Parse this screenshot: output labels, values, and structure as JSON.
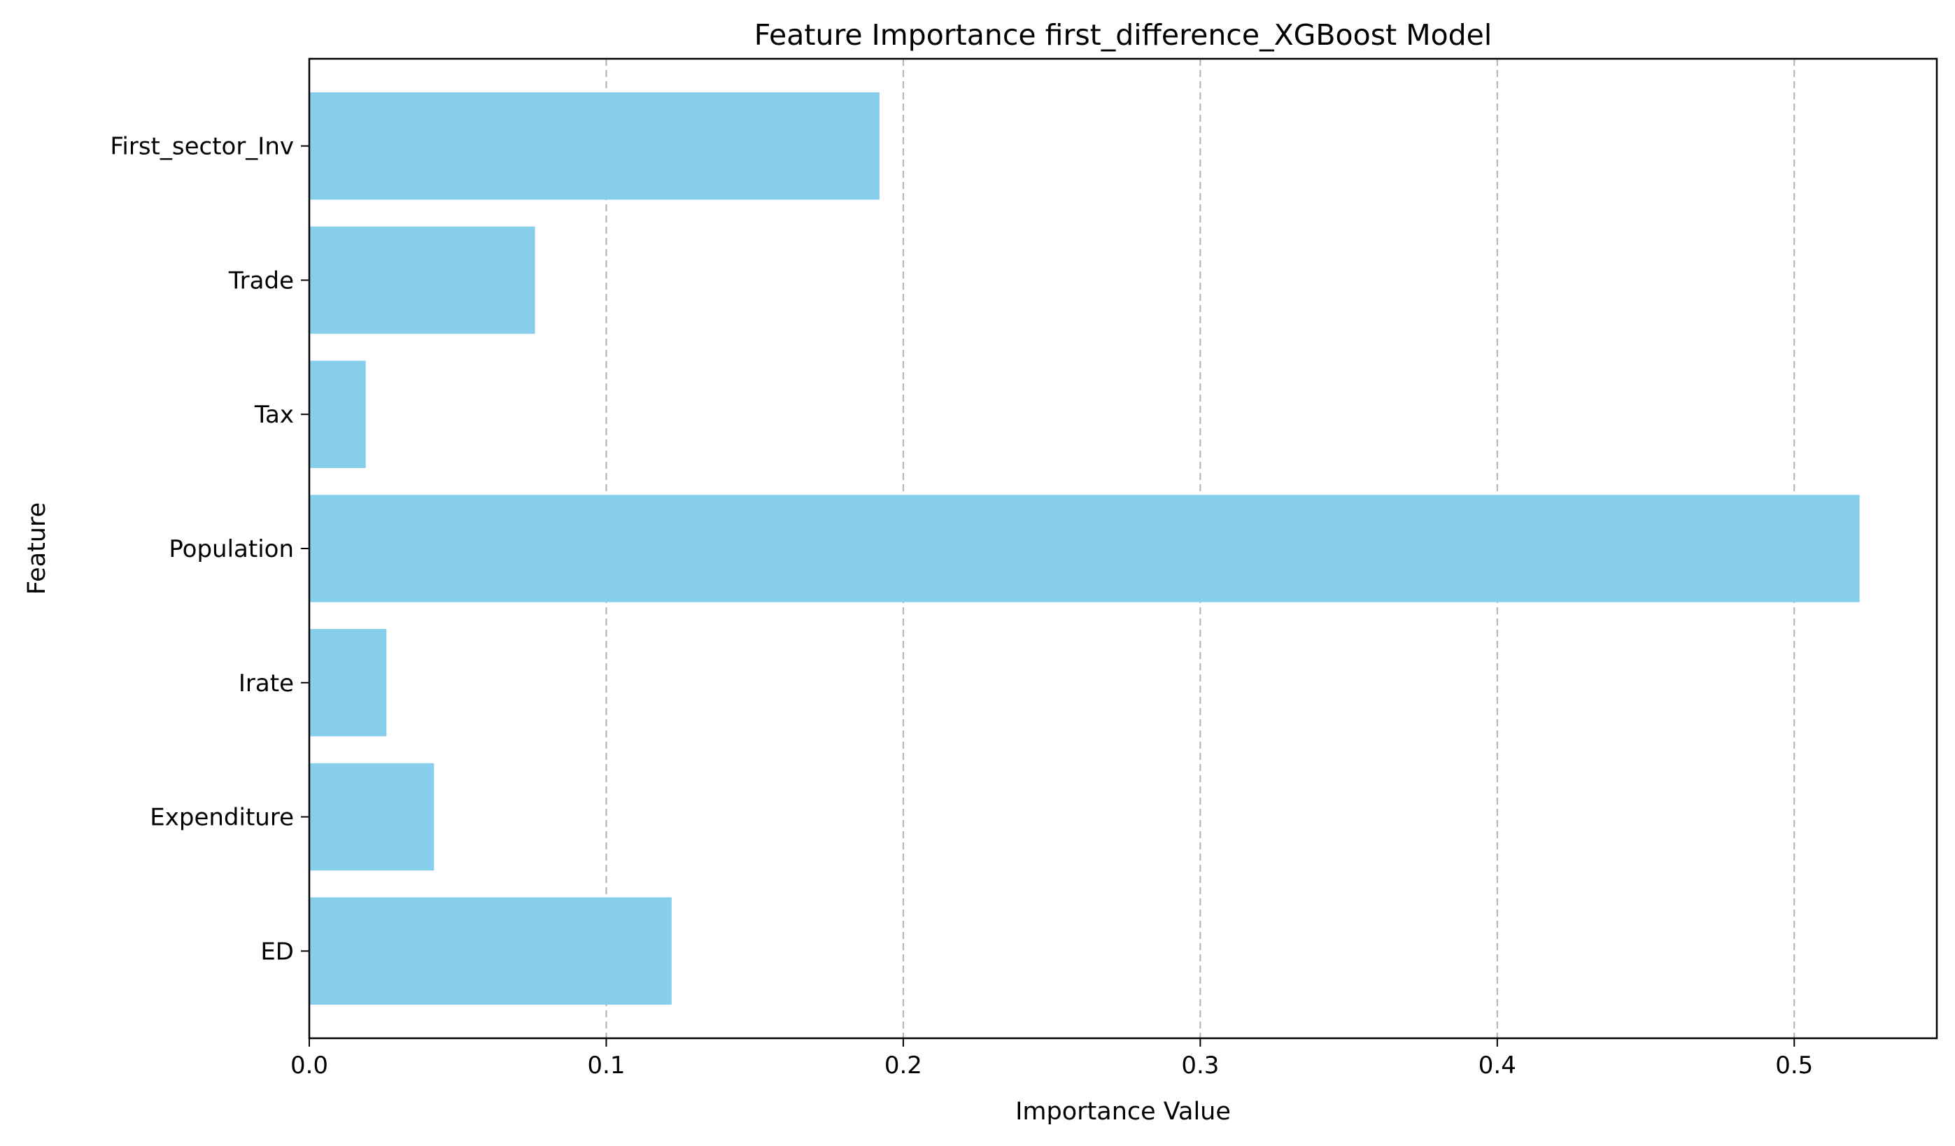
{
  "chart_data": {
    "type": "bar",
    "orientation": "horizontal",
    "title": "Feature Importance first_difference_XGBoost Model",
    "xlabel": "Importance Value",
    "ylabel": "Feature",
    "categories": [
      "First_sector_Inv",
      "Trade",
      "Tax",
      "Population",
      "Irate",
      "Expenditure",
      "ED"
    ],
    "values": [
      0.192,
      0.076,
      0.019,
      0.522,
      0.026,
      0.042,
      0.122
    ],
    "xlim": [
      0,
      0.548
    ],
    "xticks": [
      0.0,
      0.1,
      0.2,
      0.3,
      0.4,
      0.5
    ],
    "xtick_labels": [
      "0.0",
      "0.1",
      "0.2",
      "0.3",
      "0.4",
      "0.5"
    ],
    "grid": {
      "x": true,
      "y": false,
      "style": "dashed"
    },
    "bar_color": "#87CEEB",
    "grid_color": "#b0b0b0",
    "legend": "none"
  }
}
